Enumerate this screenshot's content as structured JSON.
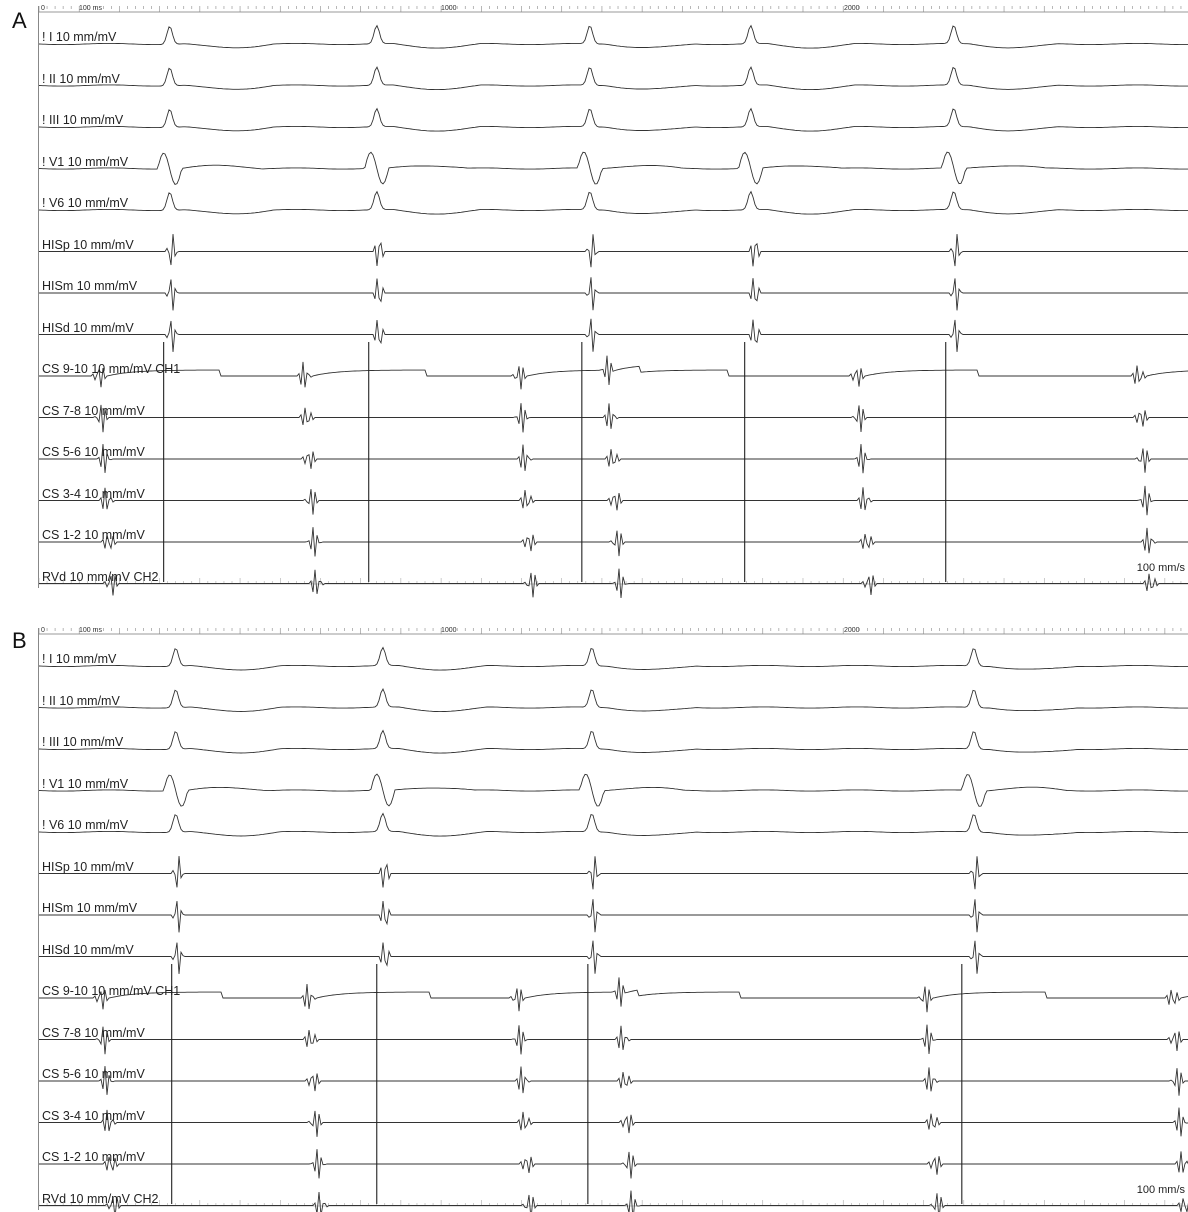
{
  "chart_data": [
    {
      "type": "line",
      "panel_label": "A",
      "ruler_ticks": [
        "0",
        "100 ms",
        "1000",
        "2000"
      ],
      "speed": "100 mm/s",
      "channels": [
        "! I  10 mm/mV",
        "! II  10 mm/mV",
        "! III  10 mm/mV",
        "! V1  10 mm/mV",
        "! V6  10 mm/mV",
        "HISp  10 mm/mV",
        "HISm  10 mm/mV",
        "HISd  10 mm/mV",
        "CS 9-10  10 mm/mV  CH1",
        "CS 7-8  10 mm/mV",
        "CS 5-6  10 mm/mV",
        "CS 3-4  10 mm/mV",
        "CS 1-2  10 mm/mV",
        "RVd  10 mm/mV  CH2"
      ],
      "x_range_ms": [
        0,
        2860
      ],
      "qrs_ms": [
        325,
        840,
        1370,
        1770,
        2275
      ],
      "his_ms": [
        330,
        845,
        1375,
        1780,
        2280
      ],
      "cs_activation_ms": [
        150,
        660,
        1195,
        1415,
        2035,
        2735
      ],
      "rv_spikes_ms": [
        310,
        820,
        1350,
        1755,
        2255
      ]
    },
    {
      "type": "line",
      "panel_label": "B",
      "ruler_ticks": [
        "0",
        "100 ms",
        "1000",
        "2000"
      ],
      "speed": "100 mm/s",
      "channels": [
        "! I  10 mm/mV",
        "! II  10 mm/mV",
        "! III  10 mm/mV",
        "! V1  10 mm/mV",
        "! V6  10 mm/mV",
        "HISp  10 mm/mV",
        "HISm  10 mm/mV",
        "HISd  10 mm/mV",
        "CS 9-10  10 mm/mV  CH1",
        "CS 7-8  10 mm/mV",
        "CS 5-6  10 mm/mV",
        "CS 3-4  10 mm/mV",
        "CS 1-2  10 mm/mV",
        "RVd  10 mm/mV  CH2"
      ],
      "x_range_ms": [
        0,
        2860
      ],
      "qrs_ms": [
        340,
        855,
        1375,
        2325
      ],
      "his_ms": [
        345,
        860,
        1380,
        2330
      ],
      "cs_activation_ms": [
        155,
        670,
        1190,
        1445,
        2205,
        2820
      ],
      "rv_spikes_ms": [
        330,
        840,
        1365,
        2295
      ]
    }
  ]
}
